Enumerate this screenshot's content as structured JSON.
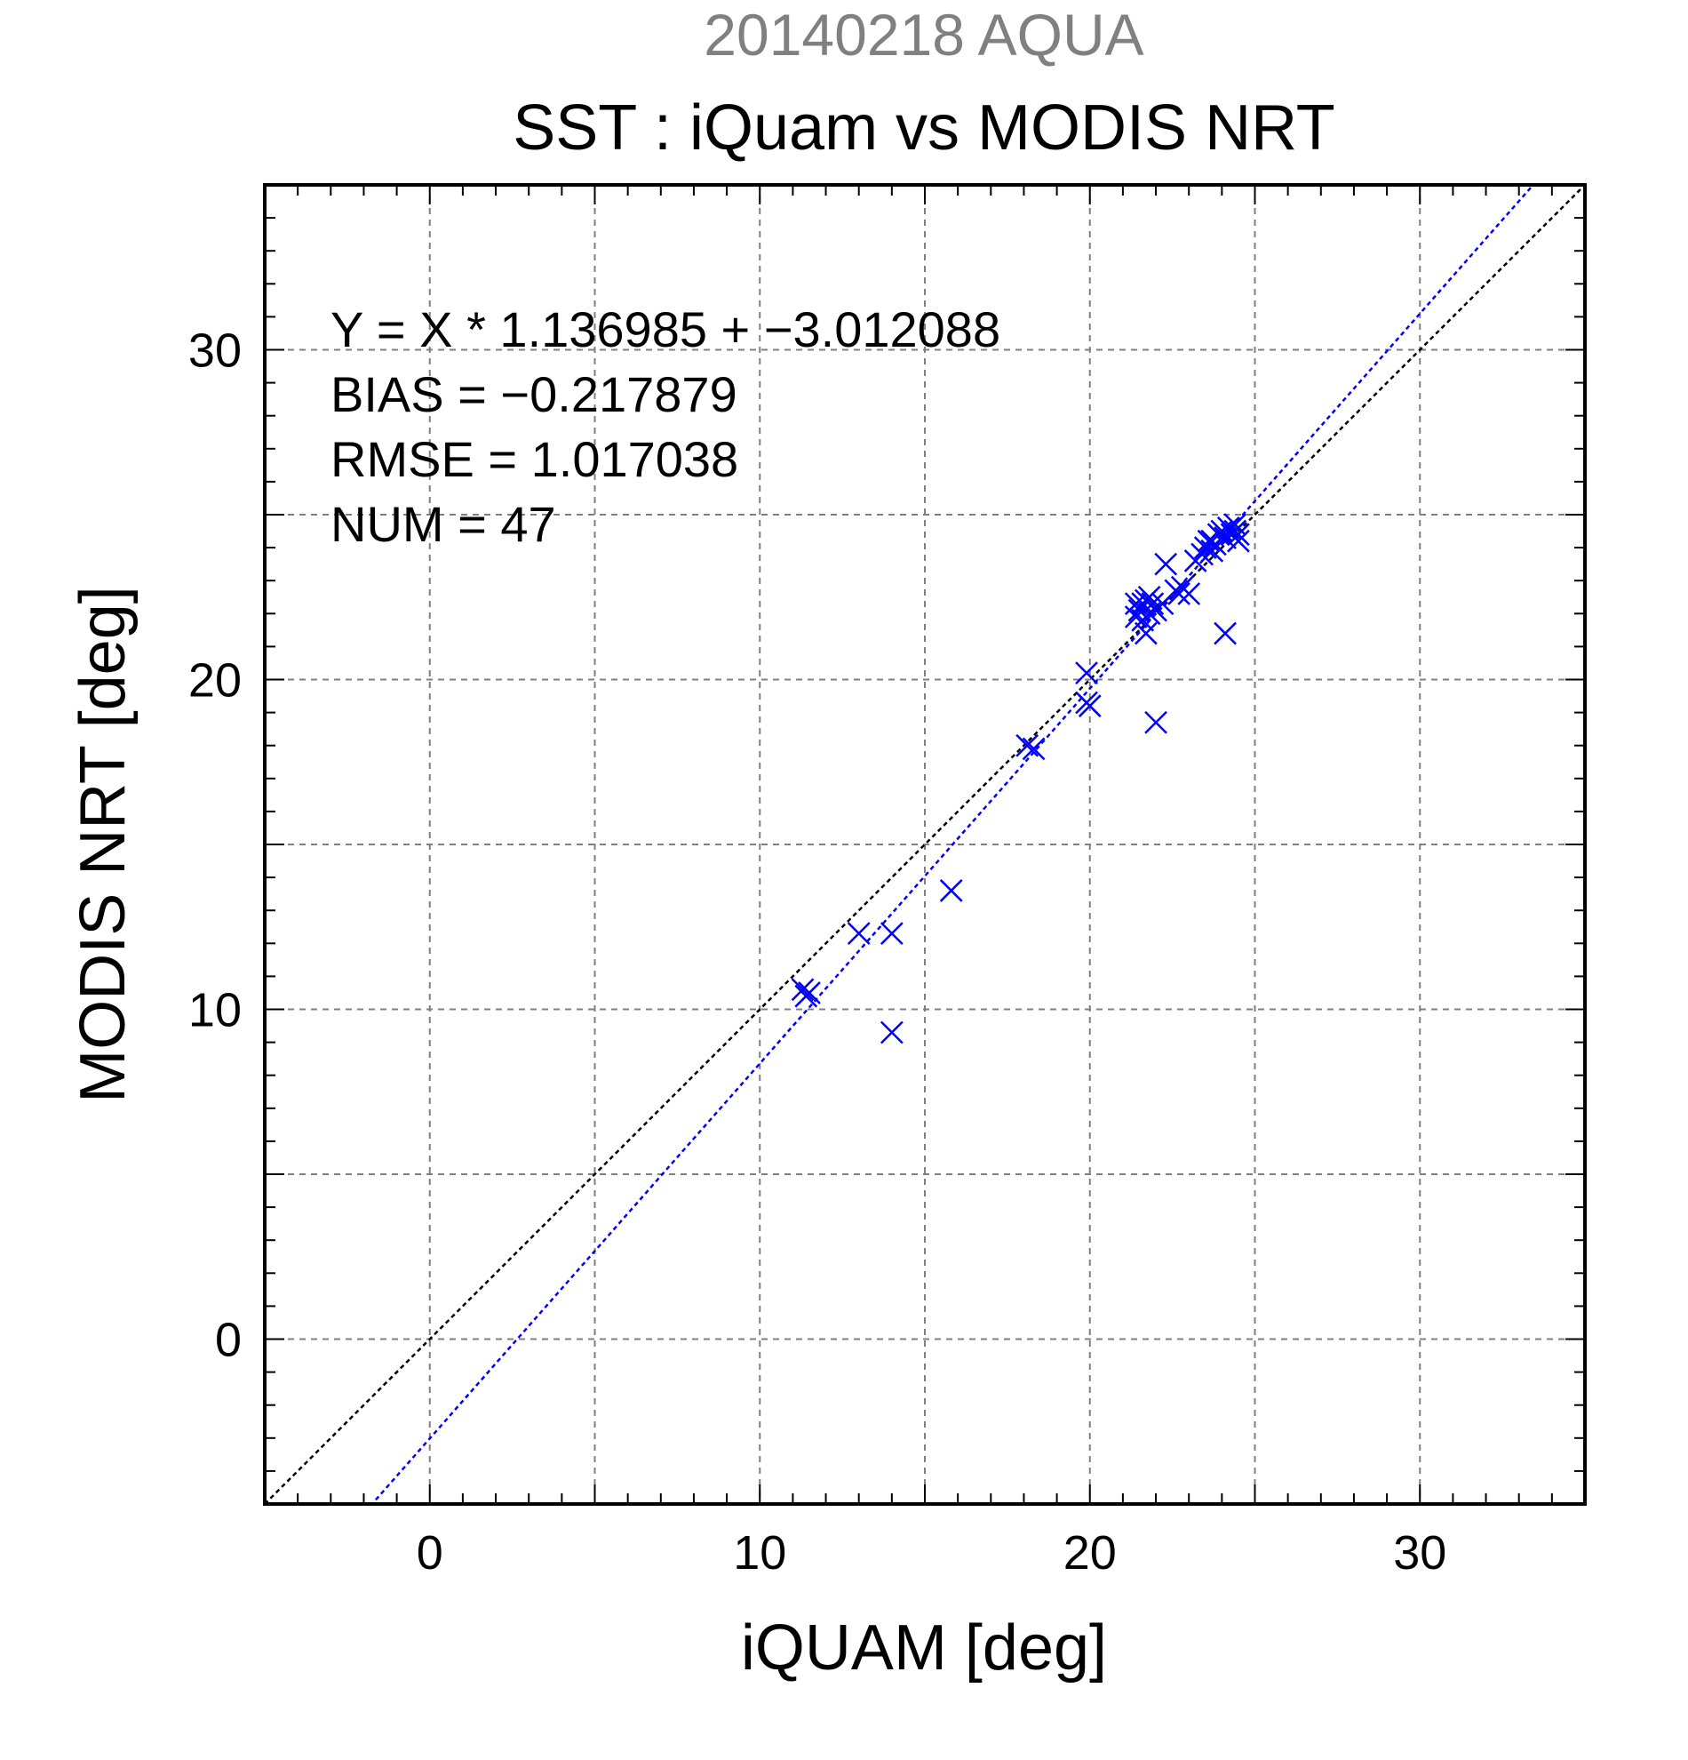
{
  "chart_data": {
    "type": "scatter",
    "suptitle": "20140218 AQUA",
    "title": "SST : iQuam vs MODIS NRT",
    "xlabel": "iQUAM [deg]",
    "ylabel": "MODIS NRT [deg]",
    "xlim": [
      -5,
      35
    ],
    "ylim": [
      -5,
      35
    ],
    "xticks": [
      0,
      10,
      20,
      30
    ],
    "yticks": [
      0,
      10,
      20,
      30
    ],
    "grid": true,
    "annotation_lines": [
      "Y = X * 1.136985 + −3.012088",
      "BIAS = −0.217879",
      "RMSE = 1.017038",
      "NUM = 47"
    ],
    "fit": {
      "slope": 1.136985,
      "intercept": -3.012088
    },
    "colors": {
      "points": "#0000ff",
      "fit_line": "#0000ff",
      "identity_line": "#000000",
      "grid": "#808080",
      "suptitle": "#808080"
    },
    "series": [
      {
        "marker": "x",
        "x": [
          11.3,
          11.5,
          11.4,
          13.0,
          14.0,
          14.0,
          15.8,
          18.1,
          18.3,
          19.9,
          19.9,
          20.0,
          21.4,
          21.4,
          21.5,
          21.6,
          21.6,
          21.7,
          21.7,
          21.8,
          21.8,
          21.9,
          22.0,
          22.0,
          22.2,
          22.3,
          22.6,
          22.7,
          22.8,
          23.0,
          23.2,
          23.4,
          23.5,
          23.6,
          23.7,
          23.7,
          23.8,
          23.9,
          24.0,
          24.1,
          24.1,
          24.2,
          24.3,
          24.4,
          24.4,
          24.5,
          24.5
        ],
        "y": [
          10.6,
          10.5,
          10.4,
          12.3,
          12.3,
          9.3,
          13.6,
          18.0,
          17.9,
          20.2,
          19.3,
          19.2,
          22.3,
          21.9,
          22.1,
          22.3,
          21.8,
          22.4,
          21.4,
          22.5,
          22.0,
          22.3,
          22.1,
          18.7,
          22.3,
          23.5,
          22.7,
          22.6,
          22.8,
          22.6,
          23.6,
          23.8,
          24.0,
          24.2,
          24.2,
          23.9,
          24.1,
          24.4,
          24.5,
          21.4,
          24.3,
          24.6,
          24.4,
          24.7,
          24.5,
          24.2,
          24.4
        ]
      }
    ]
  }
}
